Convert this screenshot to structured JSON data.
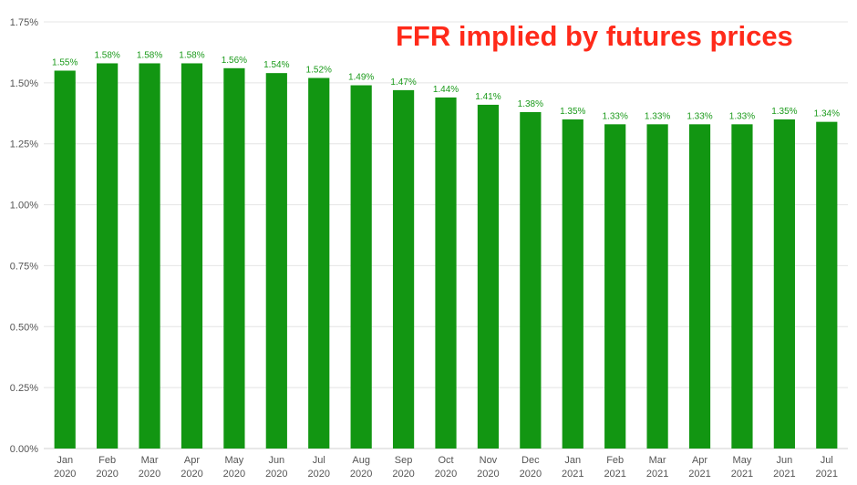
{
  "chart_data": {
    "type": "bar",
    "title": "FFR implied by futures prices",
    "categories": [
      [
        "Jan",
        "2020"
      ],
      [
        "Feb",
        "2020"
      ],
      [
        "Mar",
        "2020"
      ],
      [
        "Apr",
        "2020"
      ],
      [
        "May",
        "2020"
      ],
      [
        "Jun",
        "2020"
      ],
      [
        "Jul",
        "2020"
      ],
      [
        "Aug",
        "2020"
      ],
      [
        "Sep",
        "2020"
      ],
      [
        "Oct",
        "2020"
      ],
      [
        "Nov",
        "2020"
      ],
      [
        "Dec",
        "2020"
      ],
      [
        "Jan",
        "2021"
      ],
      [
        "Feb",
        "2021"
      ],
      [
        "Mar",
        "2021"
      ],
      [
        "Apr",
        "2021"
      ],
      [
        "May",
        "2021"
      ],
      [
        "Jun",
        "2021"
      ],
      [
        "Jul",
        "2021"
      ]
    ],
    "values": [
      1.55,
      1.58,
      1.58,
      1.58,
      1.56,
      1.54,
      1.52,
      1.49,
      1.47,
      1.44,
      1.41,
      1.38,
      1.35,
      1.33,
      1.33,
      1.33,
      1.33,
      1.35,
      1.34
    ],
    "data_labels": [
      "1.55%",
      "1.58%",
      "1.58%",
      "1.58%",
      "1.56%",
      "1.54%",
      "1.52%",
      "1.49%",
      "1.47%",
      "1.44%",
      "1.41%",
      "1.38%",
      "1.35%",
      "1.33%",
      "1.33%",
      "1.33%",
      "1.33%",
      "1.35%",
      "1.34%"
    ],
    "yticks": [
      0,
      0.25,
      0.5,
      0.75,
      1.0,
      1.25,
      1.5,
      1.75
    ],
    "ytick_labels": [
      "0.00%",
      "0.25%",
      "0.50%",
      "0.75%",
      "1.00%",
      "1.25%",
      "1.50%",
      "1.75%"
    ],
    "ylim": [
      0,
      1.75
    ],
    "xlabel": "",
    "ylabel": "",
    "grid": true,
    "legend": "none",
    "colors": {
      "bar": "#129612",
      "data_label": "#1a9a1a",
      "title": "#ff2a1a",
      "grid": "#e4e4e4",
      "axis_text": "#555555"
    }
  }
}
